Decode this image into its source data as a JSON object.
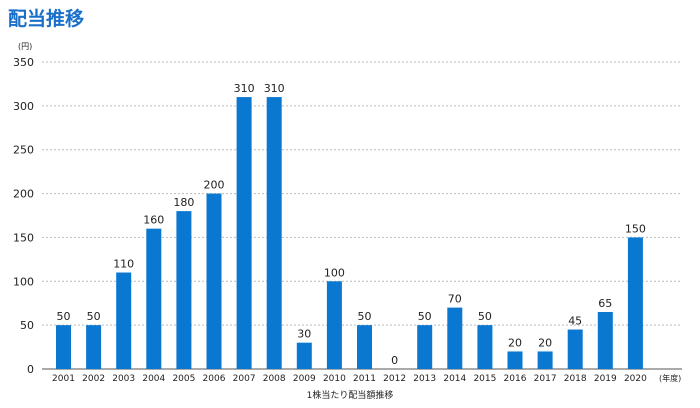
{
  "page": {
    "title": "配当推移"
  },
  "chart_data": {
    "type": "bar",
    "categories": [
      "2001",
      "2002",
      "2003",
      "2004",
      "2005",
      "2006",
      "2007",
      "2008",
      "2009",
      "2010",
      "2011",
      "2012",
      "2013",
      "2014",
      "2015",
      "2016",
      "2017",
      "2018",
      "2019",
      "2020"
    ],
    "values": [
      50,
      50,
      110,
      160,
      180,
      200,
      310,
      310,
      30,
      100,
      50,
      0,
      50,
      70,
      50,
      20,
      20,
      45,
      65,
      150
    ],
    "title": "",
    "xlabel": "1株当たり配当額推移",
    "ylabel": "",
    "y_unit": "(円)",
    "x_unit": "(年度)",
    "ylim": [
      0,
      350
    ],
    "yticks": [
      0,
      50,
      100,
      150,
      200,
      250,
      300,
      350
    ],
    "grid": "horizontal dashed",
    "colors": {
      "bar": "#0a78d1",
      "title": "#1a6fc9",
      "grid": "#bbbbbb",
      "axis": "#555555",
      "text": "#222222"
    }
  }
}
